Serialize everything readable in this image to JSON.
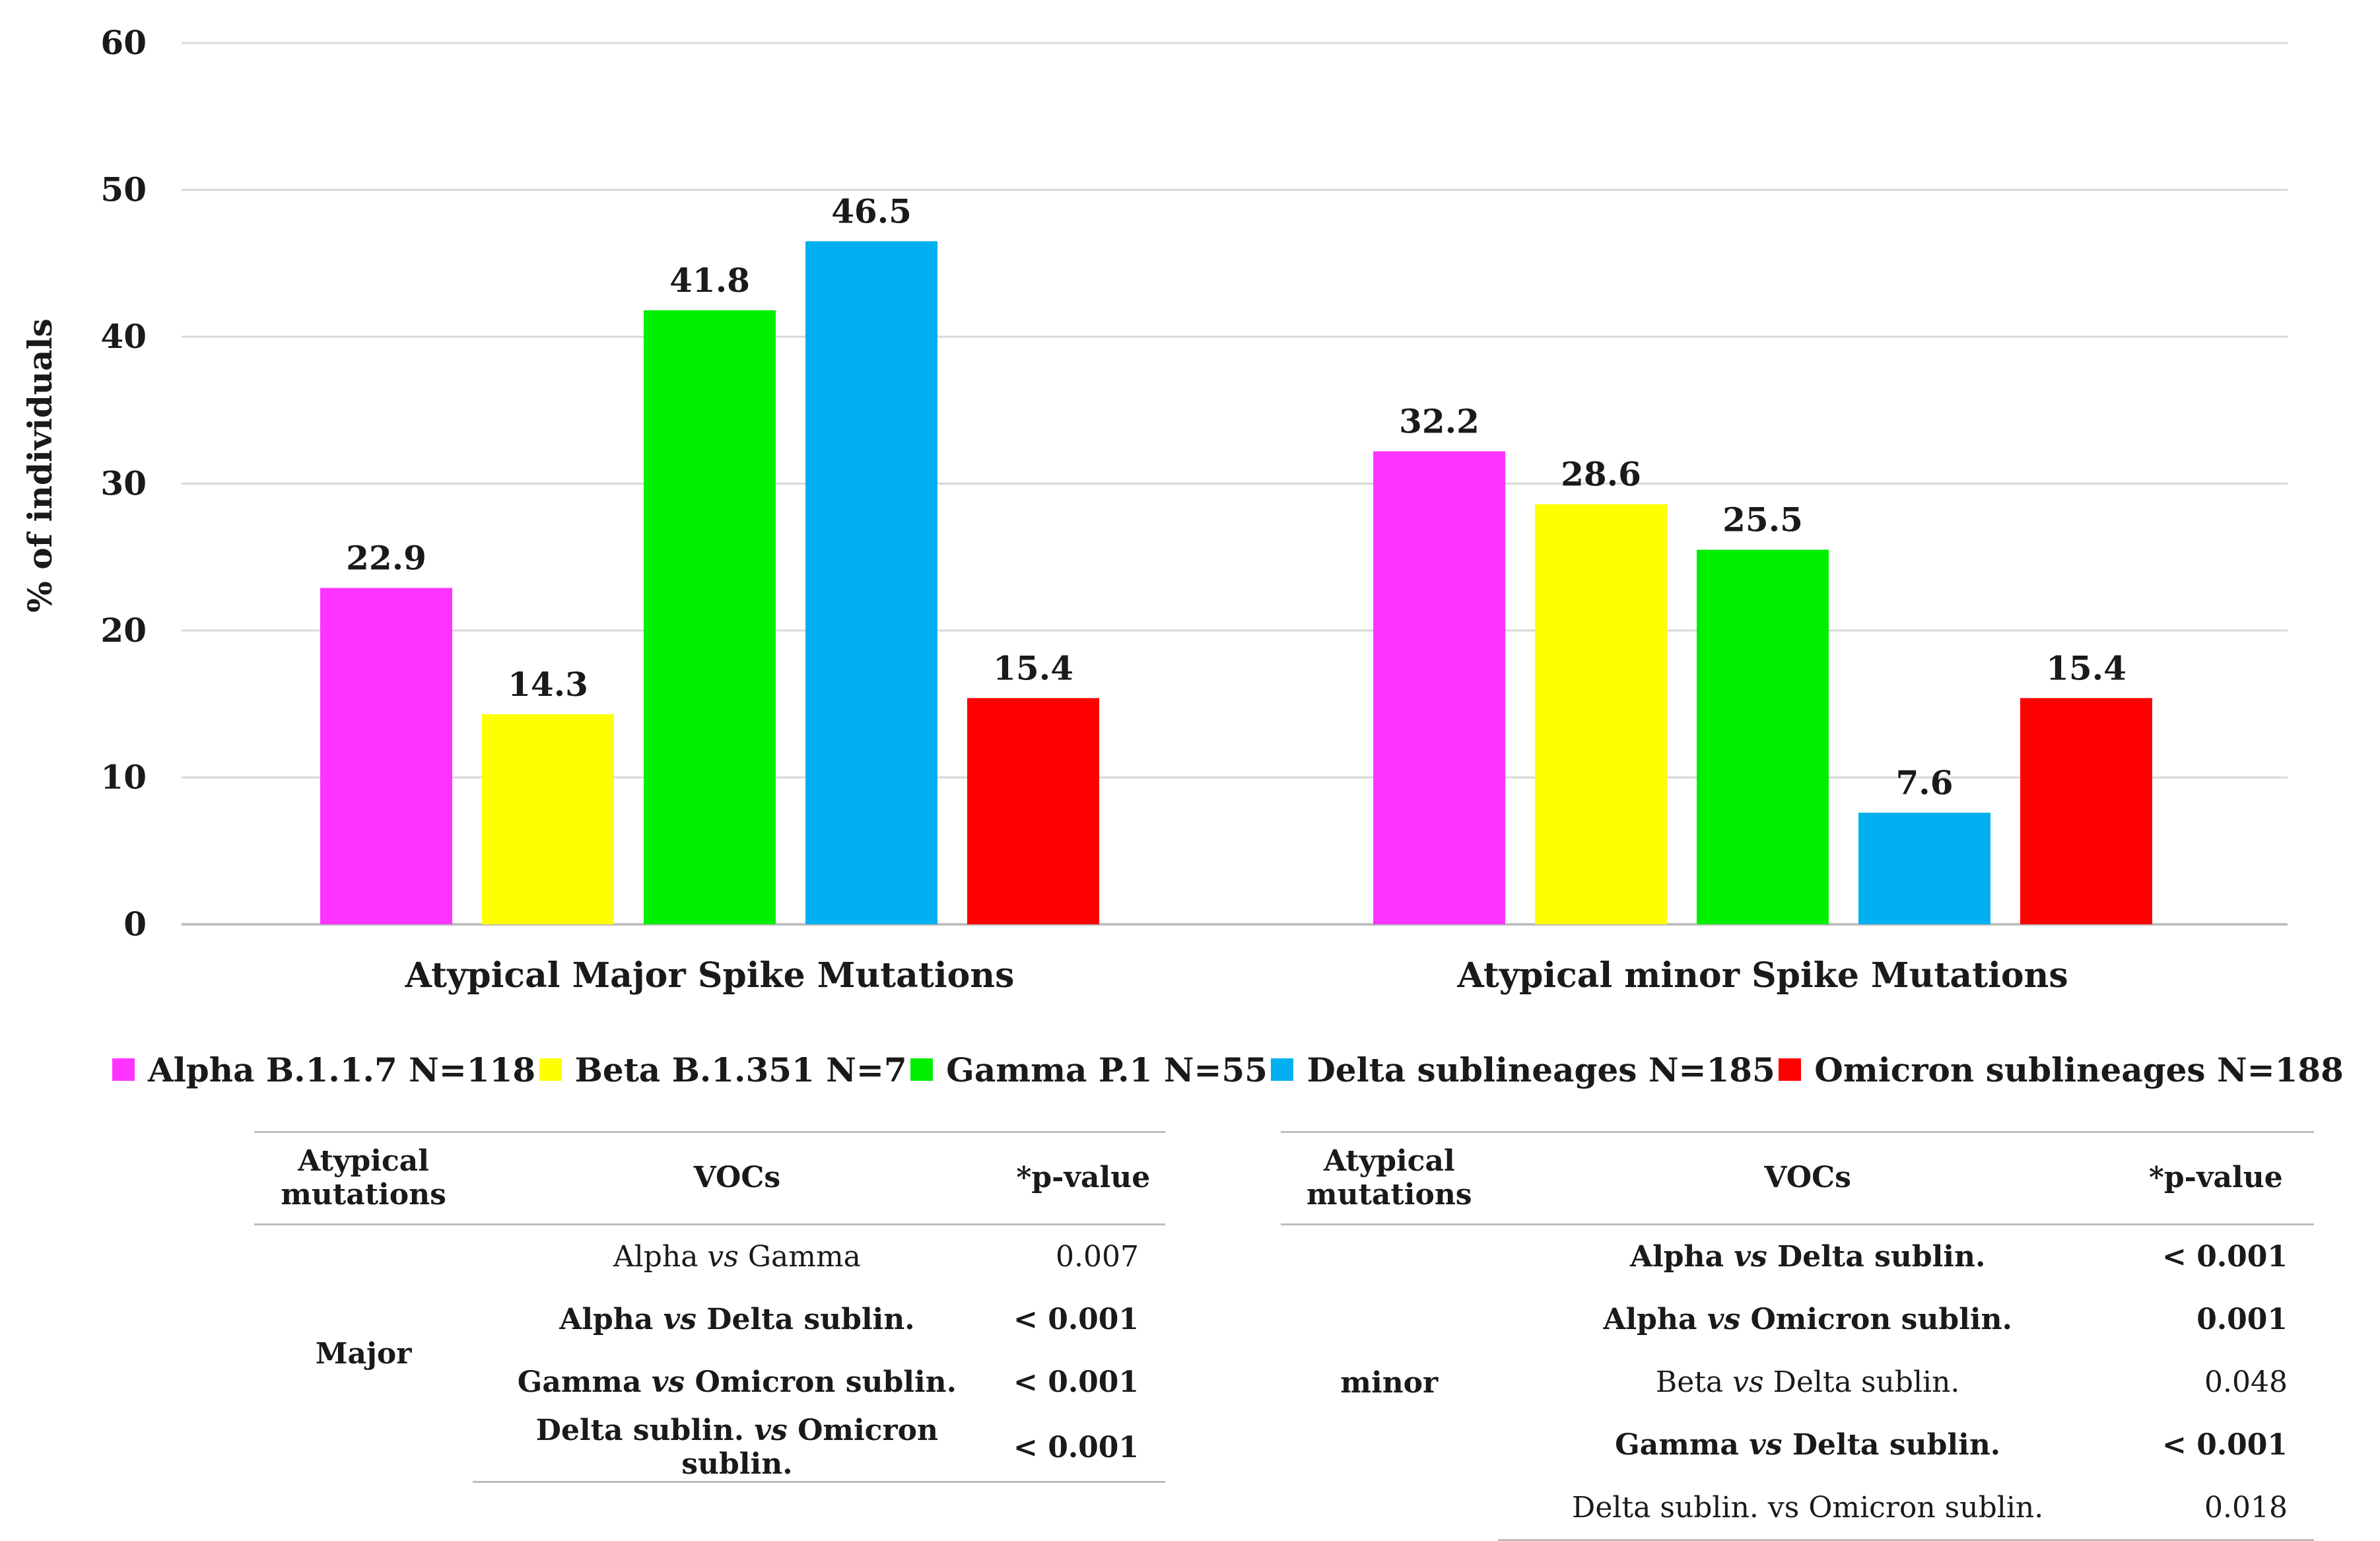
{
  "chart_data": {
    "type": "bar",
    "ylabel": "% of individuals",
    "ylim": [
      0,
      60
    ],
    "yticks": [
      0,
      10,
      20,
      30,
      40,
      50,
      60
    ],
    "grid": true,
    "legend_position": "bottom",
    "categories": [
      "Atypical Major Spike Mutations",
      "Atypical minor Spike Mutations"
    ],
    "series": [
      {
        "name": "Alpha B.1.1.7 N=118",
        "color": "#ff33ff",
        "values": [
          22.9,
          32.2
        ],
        "labels": [
          "22.9",
          "32.2"
        ]
      },
      {
        "name": "Beta B.1.351 N=7",
        "color": "#ffff00",
        "values": [
          14.3,
          28.6
        ],
        "labels": [
          "14.3",
          "28.6"
        ]
      },
      {
        "name": "Gamma P.1 N=55",
        "color": "#00ee00",
        "values": [
          41.8,
          25.5
        ],
        "labels": [
          "41.8",
          "25.5"
        ]
      },
      {
        "name": "Delta sublineages N=185",
        "color": "#00b0f0",
        "values": [
          46.5,
          7.6
        ],
        "labels": [
          "46.5",
          "7.6"
        ]
      },
      {
        "name": "Omicron sublineages N=188",
        "color": "#ff0000",
        "values": [
          15.4,
          15.4
        ],
        "labels": [
          "15.4",
          "15.4"
        ]
      }
    ]
  },
  "tables": {
    "headers": {
      "mutations": "Atypical mutations",
      "vocs": "VOCs",
      "pvalue": "*p-value"
    },
    "major": {
      "group": "Major",
      "rows": [
        {
          "a": "Alpha",
          "vs": "vs",
          "b": "Gamma",
          "p": "0.007",
          "bold": false
        },
        {
          "a": "Alpha",
          "vs": "vs",
          "b": "Delta sublin.",
          "p": "< 0.001",
          "bold": true
        },
        {
          "a": "Gamma",
          "vs": "vs",
          "b": "Omicron sublin.",
          "p": "< 0.001",
          "bold": true
        },
        {
          "a": "Delta sublin.",
          "vs": "vs",
          "b": "Omicron sublin.",
          "p": "< 0.001",
          "bold": true
        }
      ]
    },
    "minor": {
      "group": "minor",
      "rows": [
        {
          "a": "Alpha",
          "vs": "vs",
          "b": "Delta sublin.",
          "p": "< 0.001",
          "bold": true
        },
        {
          "a": "Alpha",
          "vs": "vs",
          "b": "Omicron sublin.",
          "p": "0.001",
          "bold": true
        },
        {
          "a": "Beta",
          "vs": "vs",
          "b": "Delta sublin.",
          "p": "0.048",
          "bold": false
        },
        {
          "a": "Gamma",
          "vs": "vs",
          "b": "Delta sublin.",
          "p": "< 0.001",
          "bold": true
        },
        {
          "a": "Delta sublin.",
          "vs": "vs",
          "b": "Omicron sublin.",
          "p": "0.018",
          "bold": false,
          "plain_vs": true
        }
      ]
    }
  }
}
